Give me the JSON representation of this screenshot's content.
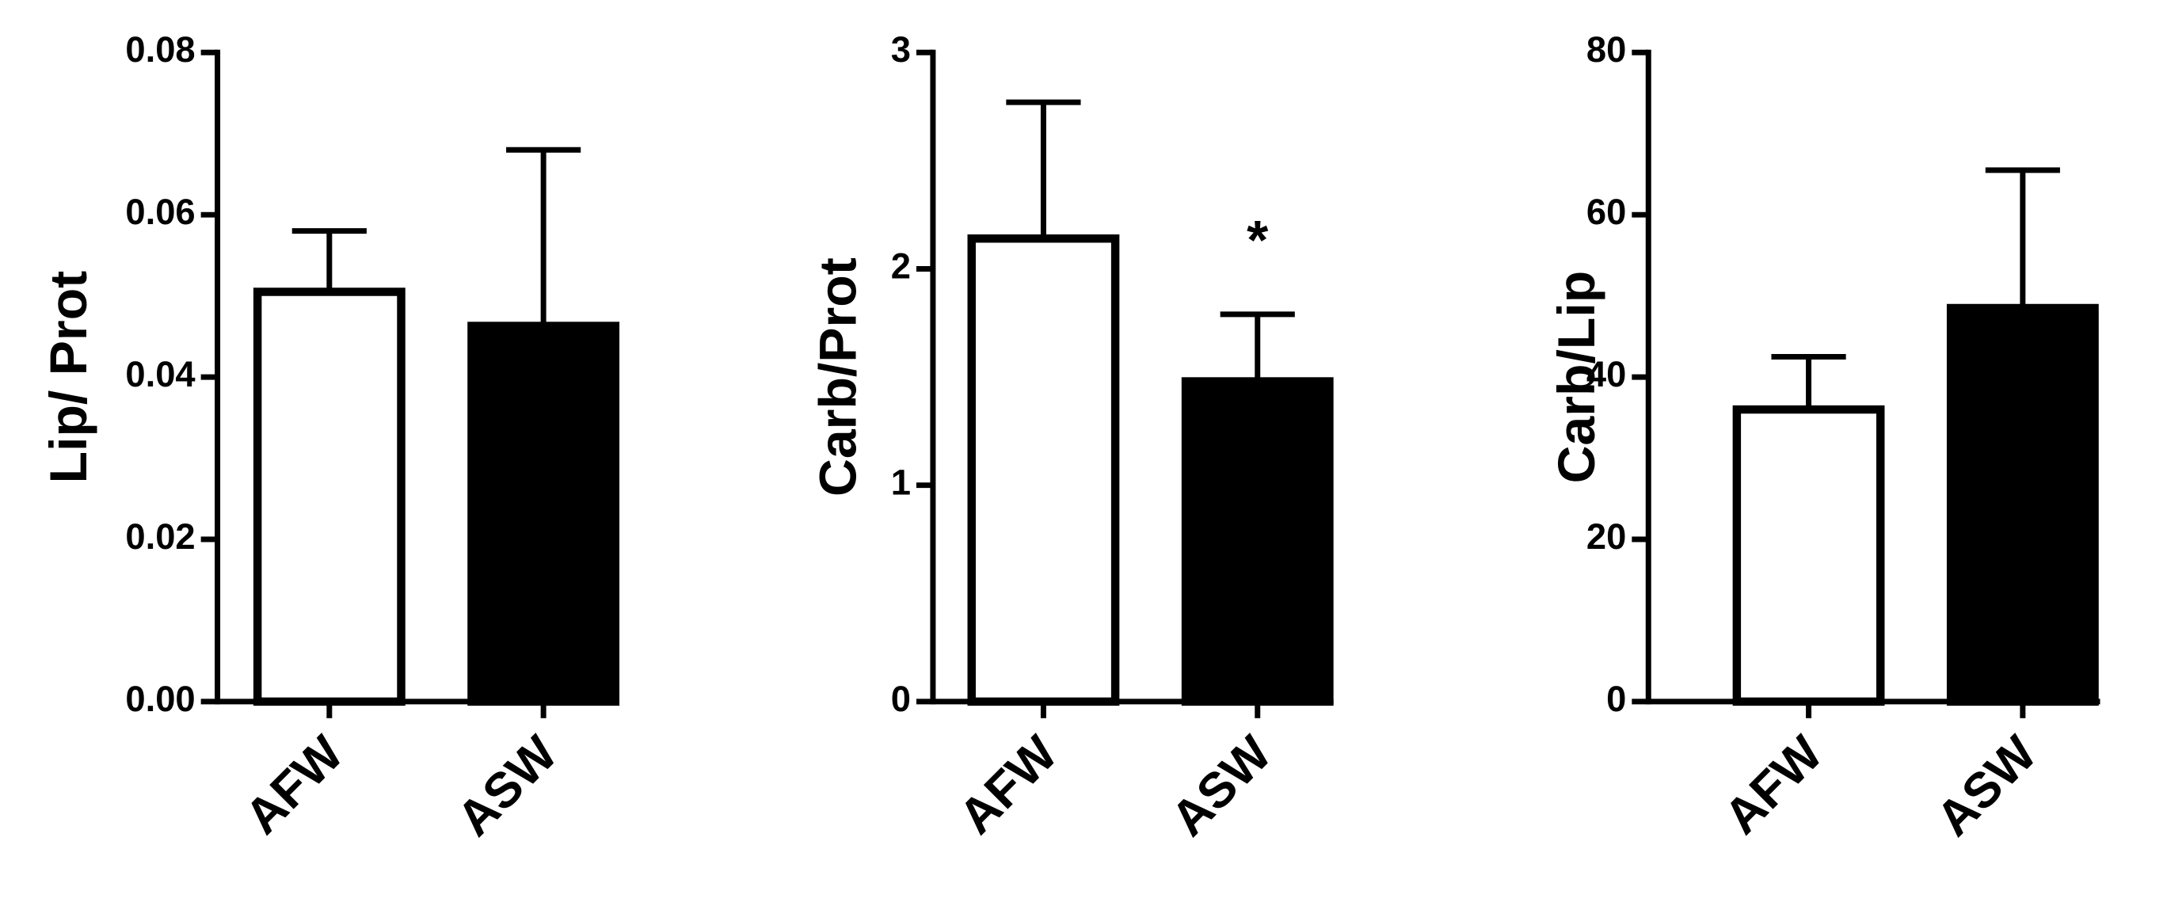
{
  "chart_data": [
    {
      "type": "bar",
      "y_label": "Lip/ Prot",
      "categories": [
        "AFW",
        "ASW"
      ],
      "values": [
        0.0505,
        0.0463
      ],
      "errors": [
        0.0075,
        0.0217
      ],
      "colors": [
        "#ffffff",
        "#000000"
      ],
      "ylim": [
        0,
        0.08
      ],
      "yticks": [
        {
          "value": 0,
          "label": "0.00"
        },
        0.02,
        0.04,
        0.06,
        0.08
      ]
    },
    {
      "type": "bar",
      "y_label": "Carb/Prot",
      "categories": [
        "AFW",
        "ASW"
      ],
      "values": [
        2.14,
        1.48
      ],
      "errors": [
        0.63,
        0.31
      ],
      "colors": [
        "#ffffff",
        "#000000"
      ],
      "ylim": [
        0,
        3
      ],
      "yticks": [
        0,
        1,
        2,
        3
      ],
      "annotation": "*"
    },
    {
      "type": "bar",
      "y_label": "Carb/Lip",
      "categories": [
        "AFW",
        "ASW"
      ],
      "values": [
        36,
        48.5
      ],
      "errors": [
        6.5,
        17
      ],
      "colors": [
        "#ffffff",
        "#000000"
      ],
      "ylim": [
        0,
        80
      ],
      "yticks": [
        0,
        20,
        40,
        60,
        80
      ]
    }
  ]
}
